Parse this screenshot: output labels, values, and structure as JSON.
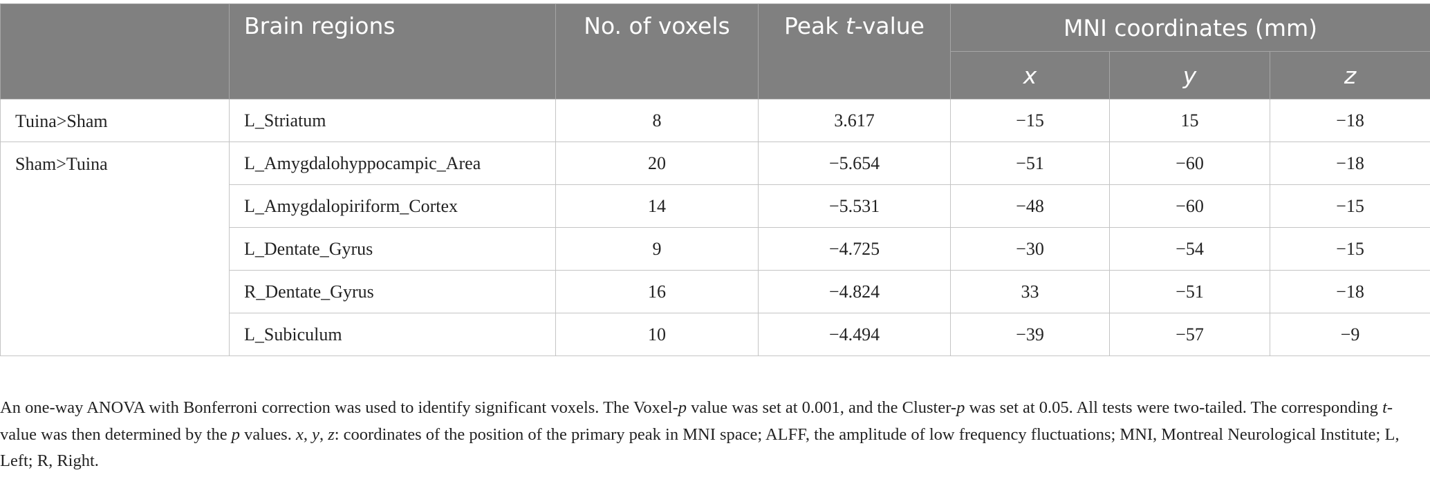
{
  "table": {
    "header": {
      "top": [
        "Brain regions",
        "No. of voxels",
        [
          {
            "text": "Peak ",
            "italic": false
          },
          {
            "text": "t",
            "italic": true
          },
          {
            "text": "-value",
            "italic": false
          }
        ],
        "MNI coordinates (mm)"
      ],
      "sub": [
        {
          "text": "x",
          "italic": true
        },
        {
          "text": "y",
          "italic": true
        },
        {
          "text": "z",
          "italic": true
        }
      ]
    },
    "groups": [
      {
        "label": "Tuina>Sham",
        "rows": [
          [
            "L_Striatum",
            "8",
            "3.617",
            "−15",
            "15",
            "−18"
          ]
        ]
      },
      {
        "label": "Sham>Tuina",
        "rows": [
          [
            "L_Amygdalohyppocampic_Area",
            "20",
            "−5.654",
            "−51",
            "−60",
            "−18"
          ],
          [
            "L_Amygdalopiriform_Cortex",
            "14",
            "−5.531",
            "−48",
            "−60",
            "−15"
          ],
          [
            "L_Dentate_Gyrus",
            "9",
            "−4.725",
            "−30",
            "−54",
            "−15"
          ],
          [
            "R_Dentate_Gyrus",
            "16",
            "−4.824",
            "33",
            "−51",
            "−18"
          ],
          [
            "L_Subiculum",
            "10",
            "−4.494",
            "−39",
            "−57",
            "−9"
          ]
        ]
      }
    ]
  },
  "footnote": [
    {
      "text": "An one-way ANOVA with Bonferroni correction was used to identify significant voxels. The Voxel-",
      "italic": false
    },
    {
      "text": "p",
      "italic": true
    },
    {
      "text": " value was set at 0.001, and the Cluster-",
      "italic": false
    },
    {
      "text": "p",
      "italic": true
    },
    {
      "text": " was set at 0.05. All tests were two-tailed. The corresponding ",
      "italic": false
    },
    {
      "text": "t",
      "italic": true
    },
    {
      "text": "-value was then determined by the ",
      "italic": false
    },
    {
      "text": "p",
      "italic": true
    },
    {
      "text": " values. ",
      "italic": false
    },
    {
      "text": "x",
      "italic": true
    },
    {
      "text": ", ",
      "italic": false
    },
    {
      "text": "y",
      "italic": true
    },
    {
      "text": ", ",
      "italic": false
    },
    {
      "text": "z",
      "italic": true
    },
    {
      "text": ": coordinates of the position of the primary peak in MNI space; ALFF, the amplitude of low frequency fluctuations; MNI, Montreal Neurological Institute; L, Left; R, Right.",
      "italic": false
    }
  ]
}
